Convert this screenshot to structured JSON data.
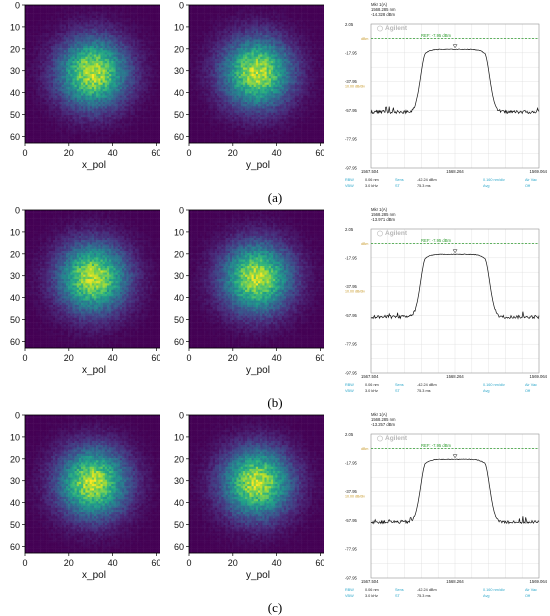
{
  "panels": [
    {
      "caption": "(a)",
      "heatmaps": [
        {
          "xlabel": "x_pol",
          "center": [
            31,
            31
          ],
          "radius": 16
        },
        {
          "xlabel": "y_pol",
          "center": [
            31,
            31
          ],
          "radius": 16
        }
      ],
      "spectrum": {
        "marker_label": "Mkr 1(A)",
        "marker_wavelength": "1568.285 nm",
        "marker_power": "-14.328 dBm",
        "marker_wl_value": 1568.285,
        "brand": "Agilent"
      }
    },
    {
      "caption": "(b)",
      "heatmaps": [
        {
          "xlabel": "x_pol",
          "center": [
            31,
            31
          ],
          "radius": 16
        },
        {
          "xlabel": "y_pol",
          "center": [
            31,
            31
          ],
          "radius": 16
        }
      ],
      "spectrum": {
        "marker_label": "Mkr 1(A)",
        "marker_wavelength": "1568.285 nm",
        "marker_power": "-13.971 dBm",
        "marker_wl_value": 1568.285,
        "brand": "Agilent"
      }
    },
    {
      "caption": "(c)",
      "heatmaps": [
        {
          "xlabel": "x_pol",
          "center": [
            31,
            31
          ],
          "radius": 16
        },
        {
          "xlabel": "y_pol",
          "center": [
            31,
            31
          ],
          "radius": 16
        }
      ],
      "spectrum": {
        "marker_label": "Mkr 1(A)",
        "marker_wavelength": "1568.285 nm",
        "marker_power": "-13.257 dBm",
        "marker_wl_value": 1568.285,
        "brand": "Agilent"
      }
    }
  ],
  "heatmap_axis": {
    "xticks": [
      0,
      20,
      40,
      60
    ],
    "yticks": [
      0,
      10,
      20,
      30,
      40,
      50,
      60
    ],
    "range": [
      0,
      63
    ]
  },
  "spectrum_common": {
    "top_value": "2.05",
    "ref_label": "REF: -7.95 dBm",
    "ref_level_dbm": -7.95,
    "y_ticks": [
      "-17.95",
      "-37.95",
      "-57.95",
      "-77.95",
      "-97.95"
    ],
    "y_tick_values": [
      -17.95,
      -37.95,
      -57.95,
      -77.95,
      -97.95
    ],
    "y_range": [
      -97.95,
      2.05
    ],
    "side_labels": [
      "dBm",
      "10.00 dB/div"
    ],
    "x_ticks": [
      "1567.504",
      "1568.264",
      "1569.064"
    ],
    "x_range": [
      1567.504,
      1569.064
    ],
    "footer": [
      [
        "RBW",
        "0.06 nm",
        "Sens",
        "-42.24 dBm",
        "0.160 nm/div",
        "Air Vac"
      ],
      [
        "VBW",
        "3.0 kHz",
        "ST",
        "75.3 ms",
        "Avg",
        "Off"
      ]
    ],
    "colors": {
      "ref_line": "#2e9b2e",
      "trace": "#111111",
      "cyan_text": "#2aa6c9",
      "grid": "#dddddd"
    }
  },
  "colors": {
    "viridis_low": "#440154",
    "viridis_high": "#fde725"
  }
}
